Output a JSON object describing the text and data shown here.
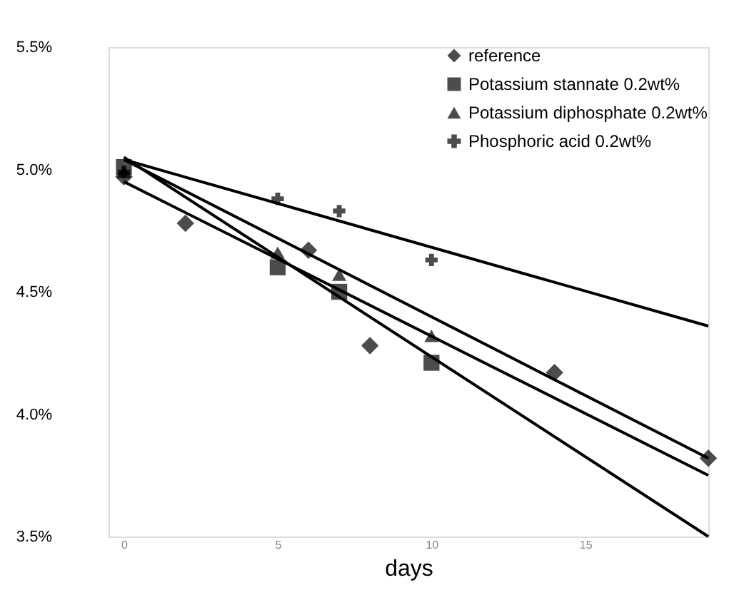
{
  "chart_data": {
    "type": "scatter",
    "xlabel": "days",
    "xlim": [
      -0.5,
      19
    ],
    "xticks": [
      0,
      5,
      10,
      15
    ],
    "ylim": [
      3.5,
      5.5
    ],
    "yticks": [
      {
        "value": 3.5,
        "label": "3.5%"
      },
      {
        "value": 4.0,
        "label": "4.0%"
      },
      {
        "value": 4.5,
        "label": "4.5%"
      },
      {
        "value": 5.0,
        "label": "5.0%"
      },
      {
        "value": 5.5,
        "label": "5.5%"
      }
    ],
    "grid": false,
    "legend": "top right",
    "series": [
      {
        "name": "reference",
        "color": "#000000",
        "marker": "diamond",
        "x": [
          0,
          2,
          6,
          8,
          14,
          19
        ],
        "values": [
          4.97,
          4.78,
          4.67,
          4.28,
          4.17,
          3.82
        ]
      },
      {
        "name": "Potassium stannate 0.2wt%",
        "color": "#000000",
        "marker": "square",
        "x": [
          0,
          5,
          7,
          10
        ],
        "values": [
          5.01,
          4.6,
          4.5,
          4.21
        ]
      },
      {
        "name": "Potassium diphosphate 0.2wt%",
        "color": "#000000",
        "marker": "triangle",
        "x": [
          0,
          5,
          7,
          10
        ],
        "values": [
          4.99,
          4.66,
          4.57,
          4.32
        ]
      },
      {
        "name": "Phosphoric acid 0.2wt%",
        "color": "#000000",
        "marker": "cross",
        "x": [
          0,
          5,
          7,
          10
        ],
        "values": [
          4.99,
          4.88,
          4.83,
          4.63
        ]
      },
      {
        "type": "line",
        "color": "#000000",
        "x": [
          0,
          19
        ],
        "values": [
          4.95,
          3.75
        ]
      },
      {
        "type": "line",
        "color": "#000000",
        "x": [
          0,
          19
        ],
        "values": [
          5.05,
          3.5
        ]
      },
      {
        "type": "line",
        "color": "#000000",
        "x": [
          0,
          19
        ],
        "values": [
          5.04,
          3.82
        ]
      },
      {
        "type": "line",
        "color": "#000000",
        "x": [
          0,
          19
        ],
        "values": [
          5.04,
          4.36
        ]
      }
    ]
  }
}
